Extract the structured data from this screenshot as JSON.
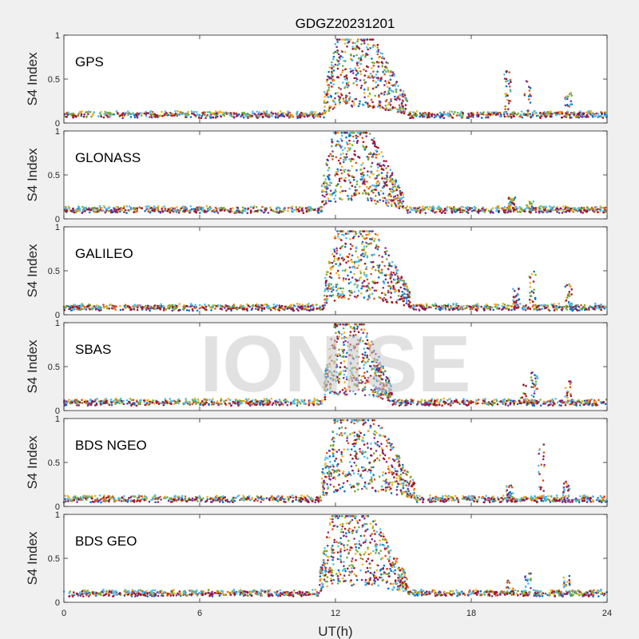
{
  "chart_data": {
    "type": "scatter",
    "title": "GDGZ20231201",
    "xlabel": "UT(h)",
    "ylabel": "S4 Index",
    "xlim": [
      0,
      24
    ],
    "ylim": [
      0,
      1
    ],
    "xticks": [
      "0",
      "6",
      "12",
      "18",
      "24"
    ],
    "yticks": [
      "0",
      "0.5",
      "1"
    ],
    "watermark": "IONISE",
    "series_colors": [
      "#0072BD",
      "#D95319",
      "#EDB120",
      "#7E2F8E",
      "#77AC30",
      "#4DBEEE",
      "#A2142F"
    ],
    "panels": [
      {
        "name": "GPS",
        "baseline": 0.08,
        "storm_start": 11.5,
        "storm_end": 15.2,
        "storm_peak": 0.95,
        "late_events": [
          [
            19.6,
            0.6
          ],
          [
            20.5,
            0.5
          ],
          [
            22.3,
            0.35
          ]
        ]
      },
      {
        "name": "GLONASS",
        "baseline": 0.09,
        "storm_start": 11.4,
        "storm_end": 15.0,
        "storm_peak": 0.98,
        "late_events": [
          [
            19.8,
            0.25
          ],
          [
            20.6,
            0.2
          ]
        ]
      },
      {
        "name": "GALILEO",
        "baseline": 0.07,
        "storm_start": 11.5,
        "storm_end": 15.3,
        "storm_peak": 0.95,
        "late_events": [
          [
            20.0,
            0.3
          ],
          [
            20.7,
            0.5
          ],
          [
            22.3,
            0.35
          ]
        ]
      },
      {
        "name": "SBAS",
        "baseline": 0.08,
        "storm_start": 11.5,
        "storm_end": 14.5,
        "storm_peak": 0.98,
        "late_events": [
          [
            20.3,
            0.3
          ],
          [
            20.8,
            0.45
          ],
          [
            22.3,
            0.35
          ]
        ]
      },
      {
        "name": "BDS NGEO",
        "baseline": 0.07,
        "storm_start": 11.4,
        "storm_end": 15.5,
        "storm_peak": 0.98,
        "late_events": [
          [
            19.7,
            0.25
          ],
          [
            21.1,
            0.75
          ],
          [
            22.2,
            0.3
          ]
        ]
      },
      {
        "name": "BDS GEO",
        "baseline": 0.09,
        "storm_start": 11.3,
        "storm_end": 15.2,
        "storm_peak": 0.98,
        "late_events": [
          [
            19.7,
            0.25
          ],
          [
            20.5,
            0.35
          ],
          [
            22.2,
            0.3
          ]
        ]
      }
    ]
  }
}
